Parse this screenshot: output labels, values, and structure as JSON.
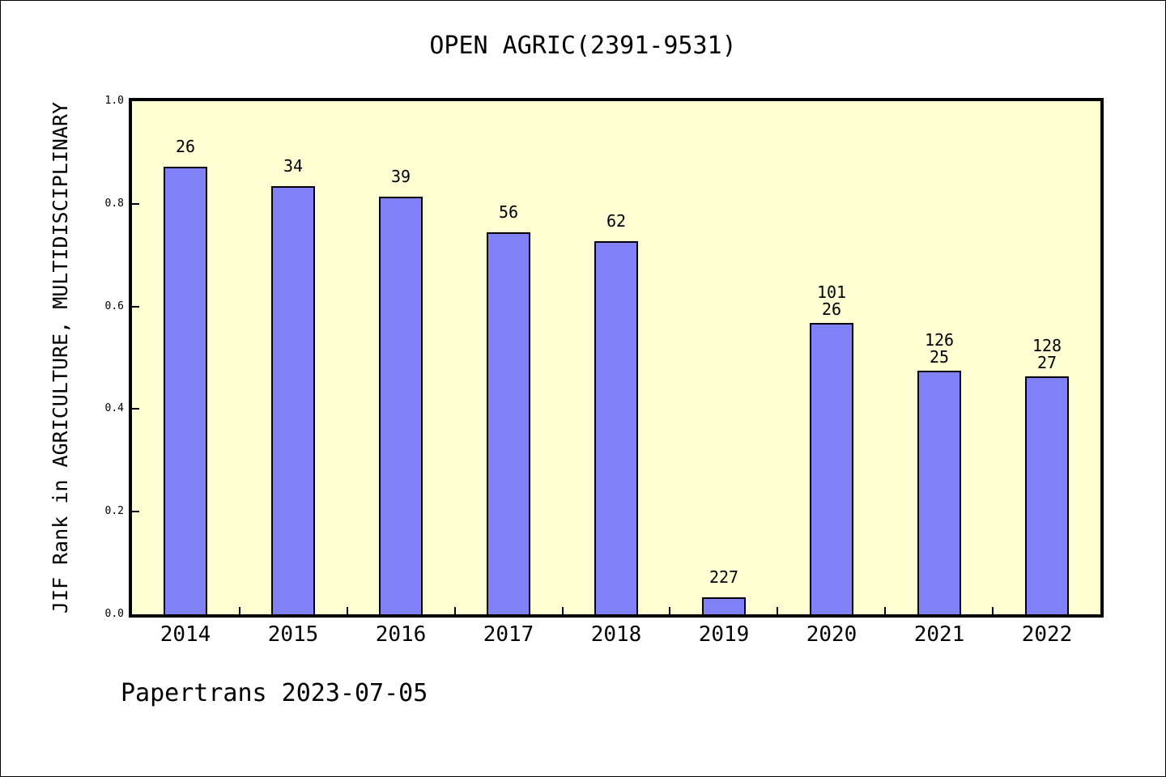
{
  "chart_data": {
    "type": "bar",
    "title": "OPEN AGRIC(2391-9531)",
    "ylabel": "JIF Rank in AGRICULTURE, MULTIDISCIPLINARY",
    "xlabel": "",
    "footer": "Papertrans 2023-07-05",
    "categories": [
      "2014",
      "2015",
      "2016",
      "2017",
      "2018",
      "2019",
      "2020",
      "2021",
      "2022"
    ],
    "values": [
      0.872,
      0.835,
      0.814,
      0.745,
      0.727,
      0.033,
      0.568,
      0.474,
      0.464
    ],
    "bar_labels": [
      [
        "26"
      ],
      [
        "34"
      ],
      [
        "39"
      ],
      [
        "56"
      ],
      [
        "62"
      ],
      [
        "227"
      ],
      [
        "101",
        "26"
      ],
      [
        "126",
        "25"
      ],
      [
        "128",
        "27"
      ]
    ],
    "ylim": [
      0,
      1
    ],
    "yticks": [
      0.0,
      0.2,
      0.4,
      0.6,
      0.8,
      1.0
    ],
    "ytick_labels": [
      "0.0",
      "0.2",
      "0.4",
      "0.6",
      "0.8",
      "1.0"
    ],
    "grid": false,
    "legend": "none",
    "bar_color": "#8181f7",
    "bar_edge_color": "#000000",
    "plot_background": "#ffffd4",
    "text_color": "#000000"
  }
}
